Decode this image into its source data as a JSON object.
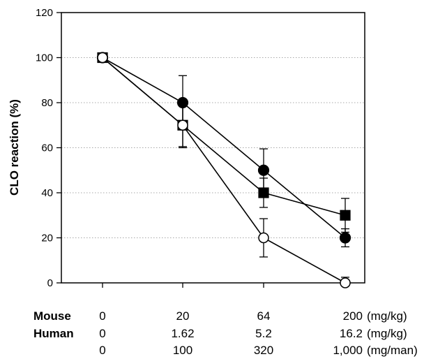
{
  "chart_data": {
    "type": "line",
    "title": "",
    "ylabel": "CLO reaction (%)",
    "xlabel": "",
    "x_index": [
      0,
      1,
      2,
      3
    ],
    "ylim": [
      0,
      120
    ],
    "yticks": [
      0,
      20,
      40,
      60,
      80,
      100,
      120
    ],
    "grid": "horizontal-dotted",
    "series": [
      {
        "marker": "filled-circle",
        "values": [
          100,
          80,
          50,
          20
        ],
        "errors": [
          0,
          12,
          9.5,
          4
        ]
      },
      {
        "marker": "filled-square",
        "values": [
          100,
          70,
          40,
          30
        ],
        "errors": [
          0,
          10,
          6.5,
          7.5
        ]
      },
      {
        "marker": "open-circle",
        "values": [
          100,
          70,
          20,
          0
        ],
        "errors": [
          0,
          9.5,
          8.5,
          2.5
        ]
      }
    ],
    "dose_table": {
      "rows": [
        {
          "label": "Mouse",
          "values": [
            "0",
            "20",
            "64",
            "200"
          ],
          "unit": "(mg/kg)"
        },
        {
          "label": "Human",
          "values": [
            "0",
            "1.62",
            "5.2",
            "16.2"
          ],
          "unit": "(mg/kg)"
        },
        {
          "label": "",
          "values": [
            "0",
            "100",
            "320",
            "1,000"
          ],
          "unit": "(mg/man)"
        }
      ]
    }
  }
}
